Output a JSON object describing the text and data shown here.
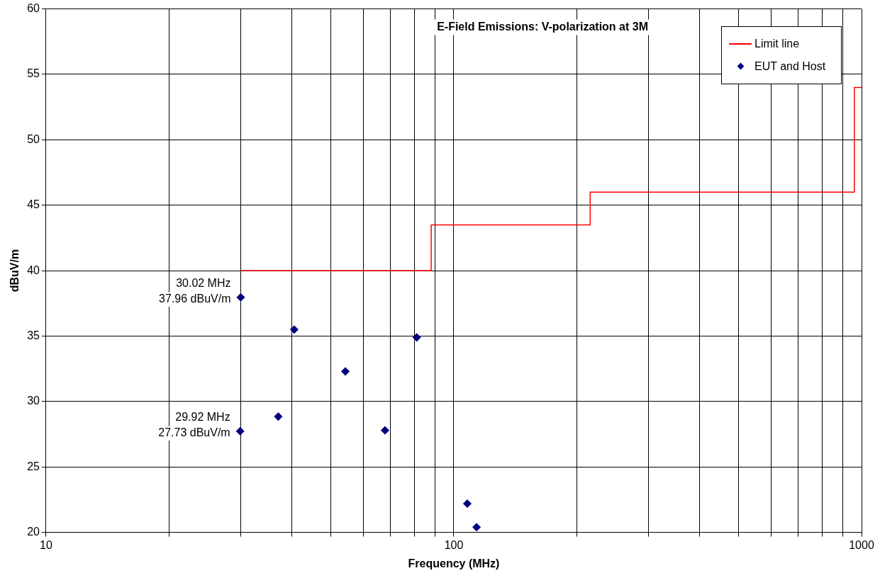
{
  "chart_data": {
    "type": "scatter",
    "title": "E-Field Emissions: V-polarization at 3M",
    "xlabel": "Frequency (MHz)",
    "ylabel": "dBuV/m",
    "series": [
      {
        "name": "Limit line",
        "type": "step",
        "color": "#ff0000",
        "x": [
          30,
          88,
          216,
          960,
          1000
        ],
        "values": [
          40,
          43.5,
          46,
          54,
          54
        ],
        "marker": "none"
      },
      {
        "name": "EUT and Host",
        "type": "scatter",
        "color": "#000080",
        "x": [
          30.02,
          29.92,
          37.1,
          40.6,
          54.2,
          67.8,
          81.1,
          107.9,
          113.7
        ],
        "values": [
          37.96,
          27.73,
          28.85,
          35.5,
          32.3,
          27.8,
          34.9,
          22.2,
          20.4
        ],
        "marker": "diamond"
      }
    ],
    "annotations": [
      {
        "text": "30.02 MHz\n37.96 dBuV/m",
        "x": 30.02,
        "y": 37.96
      },
      {
        "text": "29.92 MHz\n27.73 dBuV/m",
        "x": 29.92,
        "y": 27.73
      }
    ],
    "log": "x",
    "xlim": [
      10,
      1000
    ],
    "xticks": [
      10,
      {
        "value": 20,
        "label": null
      },
      {
        "value": 30,
        "label": null
      },
      {
        "value": 40,
        "label": null
      },
      {
        "value": 50,
        "label": null
      },
      {
        "value": 60,
        "label": null
      },
      {
        "value": 70,
        "label": null
      },
      {
        "value": 80,
        "label": null
      },
      {
        "value": 90,
        "label": null
      },
      100,
      {
        "value": 200,
        "label": null
      },
      {
        "value": 300,
        "label": null
      },
      {
        "value": 400,
        "label": null
      },
      {
        "value": 500,
        "label": null
      },
      {
        "value": 600,
        "label": null
      },
      {
        "value": 700,
        "label": null
      },
      {
        "value": 800,
        "label": null
      },
      {
        "value": 900,
        "label": null
      },
      1000
    ],
    "ylim": [
      20,
      60
    ],
    "yticks": [
      20,
      25,
      30,
      35,
      40,
      45,
      50,
      55,
      60
    ],
    "grid": true,
    "legend": "top right"
  }
}
